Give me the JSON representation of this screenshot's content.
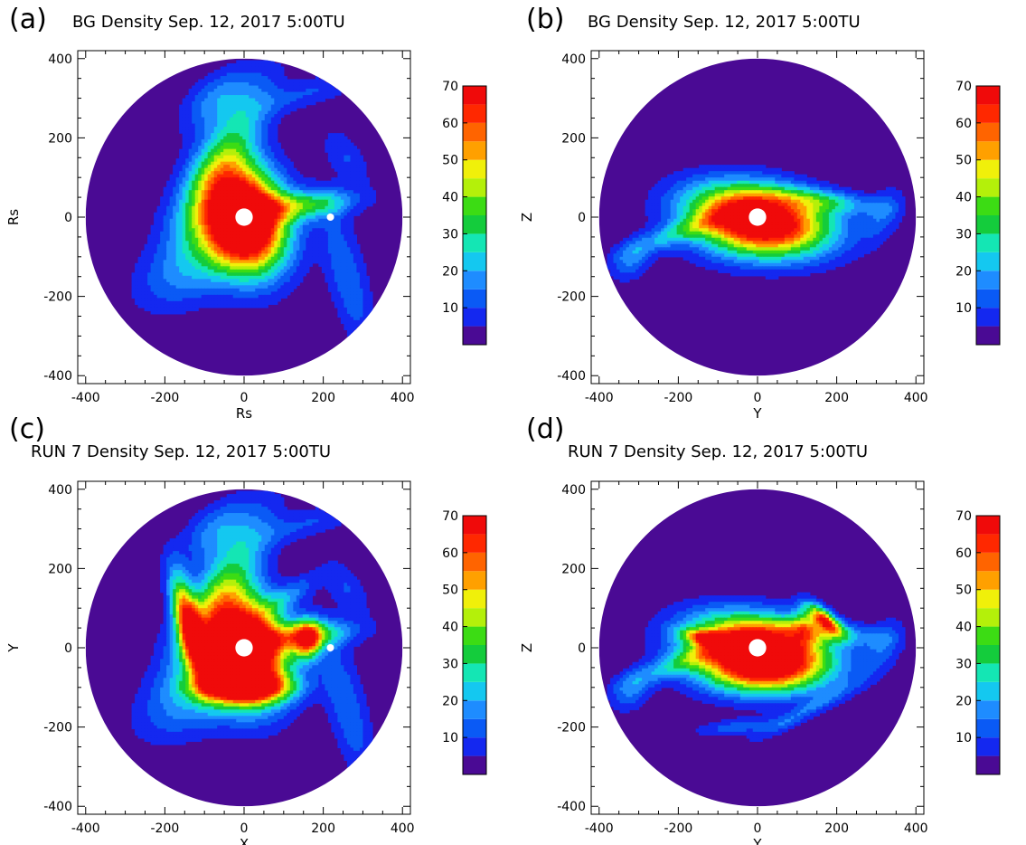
{
  "colorscale": {
    "ticks": [
      "10",
      "20",
      "30",
      "40",
      "50",
      "60",
      "70"
    ],
    "bands": [
      {
        "min": 0,
        "max": 5,
        "color": "#4a0a94"
      },
      {
        "min": 5,
        "max": 10,
        "color": "#1428f0"
      },
      {
        "min": 10,
        "max": 15,
        "color": "#0a5af5"
      },
      {
        "min": 15,
        "max": 20,
        "color": "#1e8cff"
      },
      {
        "min": 20,
        "max": 25,
        "color": "#14c8f0"
      },
      {
        "min": 25,
        "max": 30,
        "color": "#14e6b4"
      },
      {
        "min": 30,
        "max": 35,
        "color": "#14cc3c"
      },
      {
        "min": 35,
        "max": 40,
        "color": "#3cdc14"
      },
      {
        "min": 40,
        "max": 45,
        "color": "#b4f00a"
      },
      {
        "min": 45,
        "max": 50,
        "color": "#f0f00a"
      },
      {
        "min": 50,
        "max": 55,
        "color": "#ffa000"
      },
      {
        "min": 55,
        "max": 60,
        "color": "#ff6400"
      },
      {
        "min": 60,
        "max": 65,
        "color": "#ff2800"
      },
      {
        "min": 65,
        "max": 70,
        "color": "#f00a0a"
      }
    ]
  },
  "chart_data": [
    {
      "type": "heatmap",
      "letter": "(a)",
      "title": "BG Density Sep. 12, 2017 5:00TU",
      "xlabel": "Rs",
      "ylabel": "Rs",
      "xticks": [
        "-400",
        "-200",
        "0",
        "200",
        "400"
      ],
      "yticks": [
        "400",
        "200",
        "0",
        "-200",
        "-400"
      ],
      "xlim": [
        -420,
        420
      ],
      "ylim": [
        -420,
        420
      ],
      "clim": [
        0,
        70
      ],
      "view": "equatorial"
    },
    {
      "type": "heatmap",
      "letter": "(b)",
      "title": "BG Density Sep. 12, 2017 5:00TU",
      "xlabel": "Y",
      "ylabel": "Z",
      "xticks": [
        "-400",
        "-200",
        "0",
        "200",
        "400"
      ],
      "yticks": [
        "400",
        "200",
        "0",
        "-200",
        "-400"
      ],
      "xlim": [
        -420,
        420
      ],
      "ylim": [
        -420,
        420
      ],
      "clim": [
        0,
        70
      ],
      "view": "meridional"
    },
    {
      "type": "heatmap",
      "letter": "(c)",
      "title": "RUN 7 Density Sep. 12, 2017 5:00TU",
      "xlabel": "X",
      "ylabel": "Y",
      "xticks": [
        "-400",
        "-200",
        "0",
        "200",
        "400"
      ],
      "yticks": [
        "400",
        "200",
        "0",
        "-200",
        "-400"
      ],
      "xlim": [
        -420,
        420
      ],
      "ylim": [
        -420,
        420
      ],
      "clim": [
        0,
        70
      ],
      "view": "equatorial-run"
    },
    {
      "type": "heatmap",
      "letter": "(d)",
      "title": "RUN 7 Density Sep. 12, 2017 5:00TU",
      "xlabel": "Y",
      "ylabel": "Z",
      "xticks": [
        "-400",
        "-200",
        "0",
        "200",
        "400"
      ],
      "yticks": [
        "400",
        "200",
        "0",
        "-200",
        "-400"
      ],
      "xlim": [
        -420,
        420
      ],
      "ylim": [
        -420,
        420
      ],
      "clim": [
        0,
        70
      ],
      "view": "meridional-run"
    }
  ]
}
